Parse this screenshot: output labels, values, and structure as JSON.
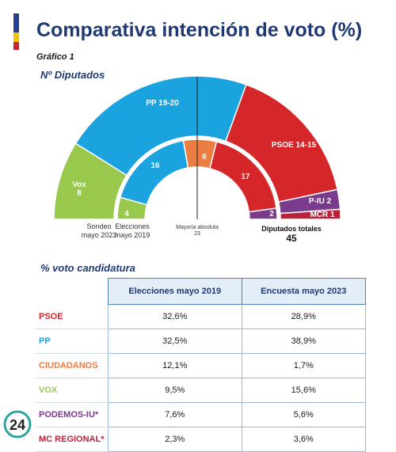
{
  "header": {
    "title": "Comparativa intención de voto (%)",
    "graph_label": "Gráfico 1",
    "section_seats": "Nº Diputados",
    "section_vote": "% voto candidatura"
  },
  "colors": {
    "psoe": "#d52629",
    "pp": "#1ba3e0",
    "ciudadanos": "#eb7d42",
    "vox": "#99c94c",
    "podemos": "#7b3b8c",
    "mcr": "#b8213a",
    "title": "#1f3a73"
  },
  "chart_data": [
    {
      "type": "pie",
      "title": "Nº Diputados",
      "caption": "Sondeo mayo 2023",
      "slices": [
        {
          "label": "Vox",
          "value": 8,
          "color": "#99c94c",
          "text": "Vox 8"
        },
        {
          "label": "PP",
          "value": 19.5,
          "color": "#1ba3e0",
          "text": "PP 19-20"
        },
        {
          "label": "PSOE",
          "value": 14.5,
          "color": "#d52629",
          "text": "PSOE 14-15"
        },
        {
          "label": "P-IU",
          "value": 2,
          "color": "#7b3b8c",
          "text": "P-IU 2"
        },
        {
          "label": "MCR",
          "value": 1,
          "color": "#b8213a",
          "text": "MCR 1"
        }
      ]
    },
    {
      "type": "pie",
      "caption": "Elecciones mayo 2019",
      "slices": [
        {
          "label": "Vox",
          "value": 4,
          "color": "#99c94c",
          "text": "4"
        },
        {
          "label": "PP",
          "value": 16,
          "color": "#1ba3e0",
          "text": "16"
        },
        {
          "label": "Ciudadanos",
          "value": 6,
          "color": "#eb7d42",
          "text": "6"
        },
        {
          "label": "PSOE",
          "value": 17,
          "color": "#d52629",
          "text": "17"
        },
        {
          "label": "Podemos",
          "value": 2,
          "color": "#7b3b8c",
          "text": "2"
        }
      ]
    }
  ],
  "annotations": {
    "mayoria": "Mayoría absoluta",
    "mayoria_value": "23",
    "total_label": "Diputados totales",
    "total_value": "45",
    "outer_caption_1": "Sondeo",
    "outer_caption_2": "mayo 2023",
    "inner_caption_1": "Elecciones",
    "inner_caption_2": "mayo 2019"
  },
  "table": {
    "columns": [
      "Elecciones mayo 2019",
      "Encuesta mayo 2023"
    ],
    "rows": [
      {
        "party": "PSOE",
        "color": "#d52629",
        "v2019": "32,6%",
        "v2023": "28,9%"
      },
      {
        "party": "PP",
        "color": "#1ba3e0",
        "v2019": "32,5%",
        "v2023": "38,9%"
      },
      {
        "party": "CIUDADANOS",
        "color": "#eb7d42",
        "v2019": "12,1%",
        "v2023": "1,7%"
      },
      {
        "party": "VOX",
        "color": "#99c94c",
        "v2019": "9,5%",
        "v2023": "15,6%"
      },
      {
        "party": "PODEMOS-IU*",
        "color": "#7b3b8c",
        "v2019": "7,6%",
        "v2023": "5,6%"
      },
      {
        "party": "MC REGIONAL*",
        "color": "#b8213a",
        "v2019": "2,3%",
        "v2023": "3,6%"
      }
    ]
  },
  "logo": {
    "text": "24"
  }
}
